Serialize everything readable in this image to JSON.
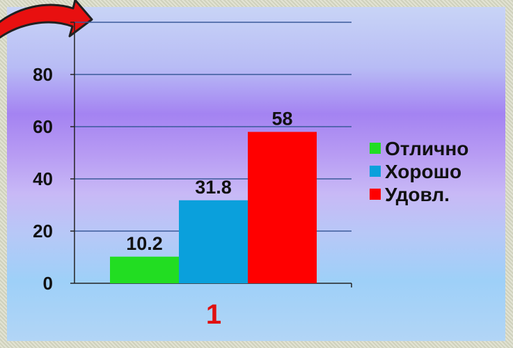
{
  "chart_data": {
    "type": "bar",
    "categories": [
      "1"
    ],
    "series": [
      {
        "name": "Отлично",
        "values": [
          10.2
        ],
        "color": "#22dd22"
      },
      {
        "name": "Хорошо",
        "values": [
          31.8
        ],
        "color": "#0aa0dc"
      },
      {
        "name": "Удовл.",
        "values": [
          58
        ],
        "color": "#ff0000"
      }
    ],
    "data_labels": [
      "10.2",
      "31.8",
      "58"
    ],
    "ylim": [
      0,
      100
    ],
    "yticks": [
      0,
      20,
      40,
      60,
      80
    ],
    "grid": true,
    "legend_position": "right",
    "category_label_color": "#e01010",
    "decoration": "red-curved-arrow-icon"
  }
}
